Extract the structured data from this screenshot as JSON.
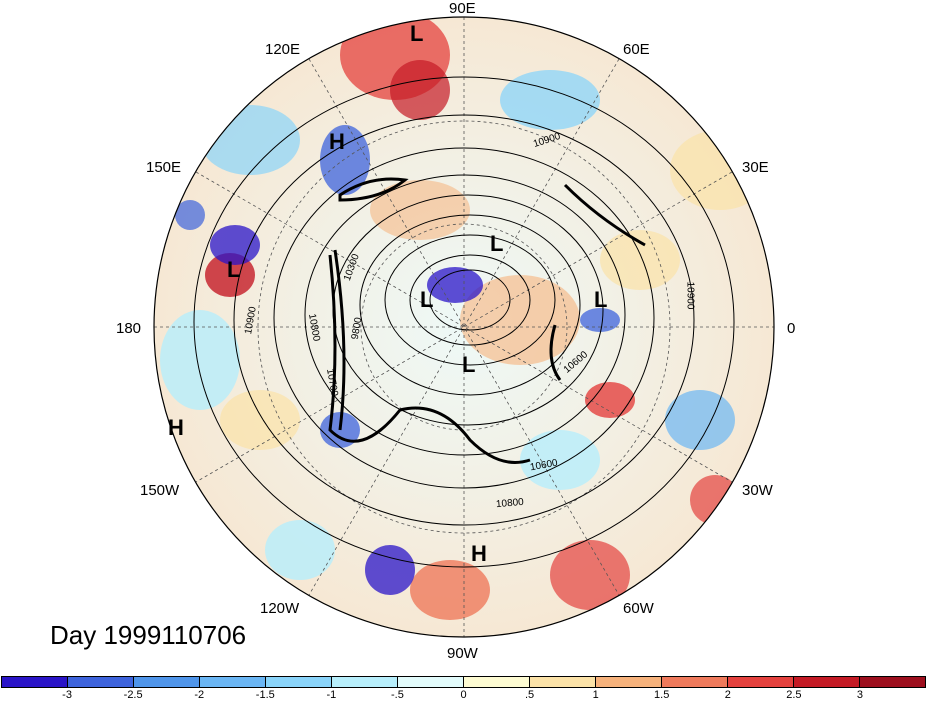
{
  "title": "Day 1999110706",
  "map": {
    "projection": "north-polar-stereographic",
    "longitude_labels": [
      "90E",
      "60E",
      "30E",
      "0",
      "30W",
      "60W",
      "90W",
      "120W",
      "150W",
      "180",
      "150E",
      "120E"
    ],
    "pressure_systems": [
      "L",
      "H",
      "L",
      "L",
      "L",
      "L",
      "L",
      "H",
      "H",
      "L"
    ],
    "contour_labels": [
      "10900",
      "10900",
      "10900",
      "10800",
      "10700",
      "10600",
      "10600",
      "10800",
      "10300",
      "9800"
    ]
  },
  "colorbar": {
    "tick_labels": [
      "-3",
      "-2.5",
      "-2",
      "-1.5",
      "-1",
      "-.5",
      "0",
      ".5",
      "1",
      "1.5",
      "2",
      "2.5",
      "3"
    ],
    "colors": [
      "#2a14c8",
      "#3d63dc",
      "#4f95ea",
      "#6bb6f4",
      "#8ad4fa",
      "#b7eefb",
      "#e2fbfb",
      "#fdfbd2",
      "#fbe2a8",
      "#f6b27c",
      "#ef7a5c",
      "#e4413e",
      "#c41a25",
      "#9d0f1e"
    ]
  }
}
